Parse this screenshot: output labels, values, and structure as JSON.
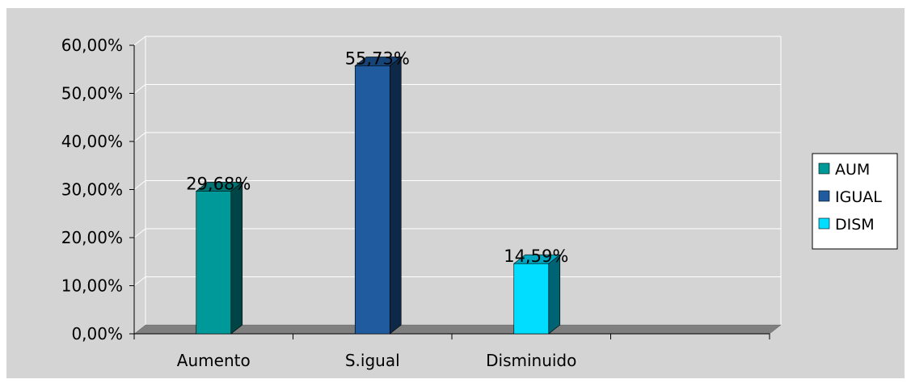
{
  "chart_data": {
    "type": "bar",
    "categories": [
      "Aumento",
      "S.igual",
      "Disminuido"
    ],
    "series": [
      {
        "name": "AUM",
        "values": [
          29.68,
          null,
          null
        ],
        "color": "#009999"
      },
      {
        "name": "IGUAL",
        "values": [
          null,
          55.73,
          null
        ],
        "color": "#1F5B9E"
      },
      {
        "name": "DISM",
        "values": [
          null,
          null,
          14.59
        ],
        "color": "#00DDFF"
      }
    ],
    "data_labels": [
      "29,68%",
      "55,73%",
      "14,59%"
    ],
    "y_ticks": [
      "0,00%",
      "10,00%",
      "20,00%",
      "30,00%",
      "40,00%",
      "50,00%",
      "60,00%"
    ],
    "ylim": [
      0,
      60
    ],
    "grid": true,
    "legend_position": "right",
    "style": "3d-column",
    "plot_background": "#D4D4D4",
    "floor_color": "#7F7F7F"
  }
}
